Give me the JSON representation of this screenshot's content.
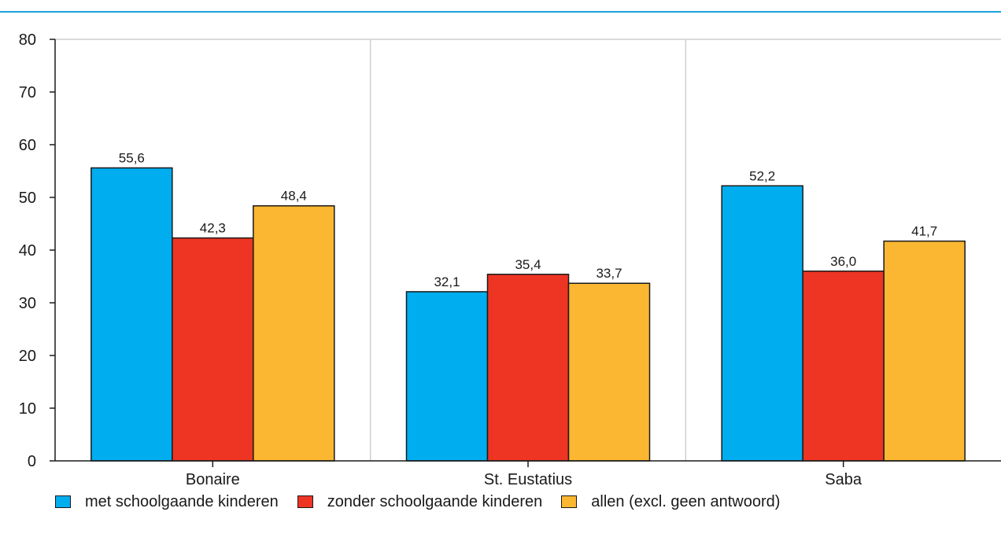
{
  "chart_data": {
    "type": "bar",
    "categories": [
      "Bonaire",
      "St. Eustatius",
      "Saba"
    ],
    "series": [
      {
        "name": "met schoolgaande kinderen",
        "color": "#00adef",
        "values": [
          55.6,
          32.1,
          52.2
        ],
        "labels": [
          "55,6",
          "32,1",
          "52,2"
        ]
      },
      {
        "name": "zonder schoolgaande kinderen",
        "color": "#ee3524",
        "values": [
          42.3,
          35.4,
          36.0
        ],
        "labels": [
          "42,3",
          "35,4",
          "36,0"
        ]
      },
      {
        "name": "allen (excl. geen antwoord)",
        "color": "#fbb731",
        "values": [
          48.4,
          33.7,
          41.7
        ],
        "labels": [
          "48,4",
          "33,7",
          "41,7"
        ]
      }
    ],
    "ylim": [
      0,
      80
    ],
    "yticks": [
      "0",
      "10",
      "20",
      "30",
      "40",
      "50",
      "60",
      "70",
      "80"
    ],
    "grid": "vertical",
    "legend": "bottom"
  }
}
